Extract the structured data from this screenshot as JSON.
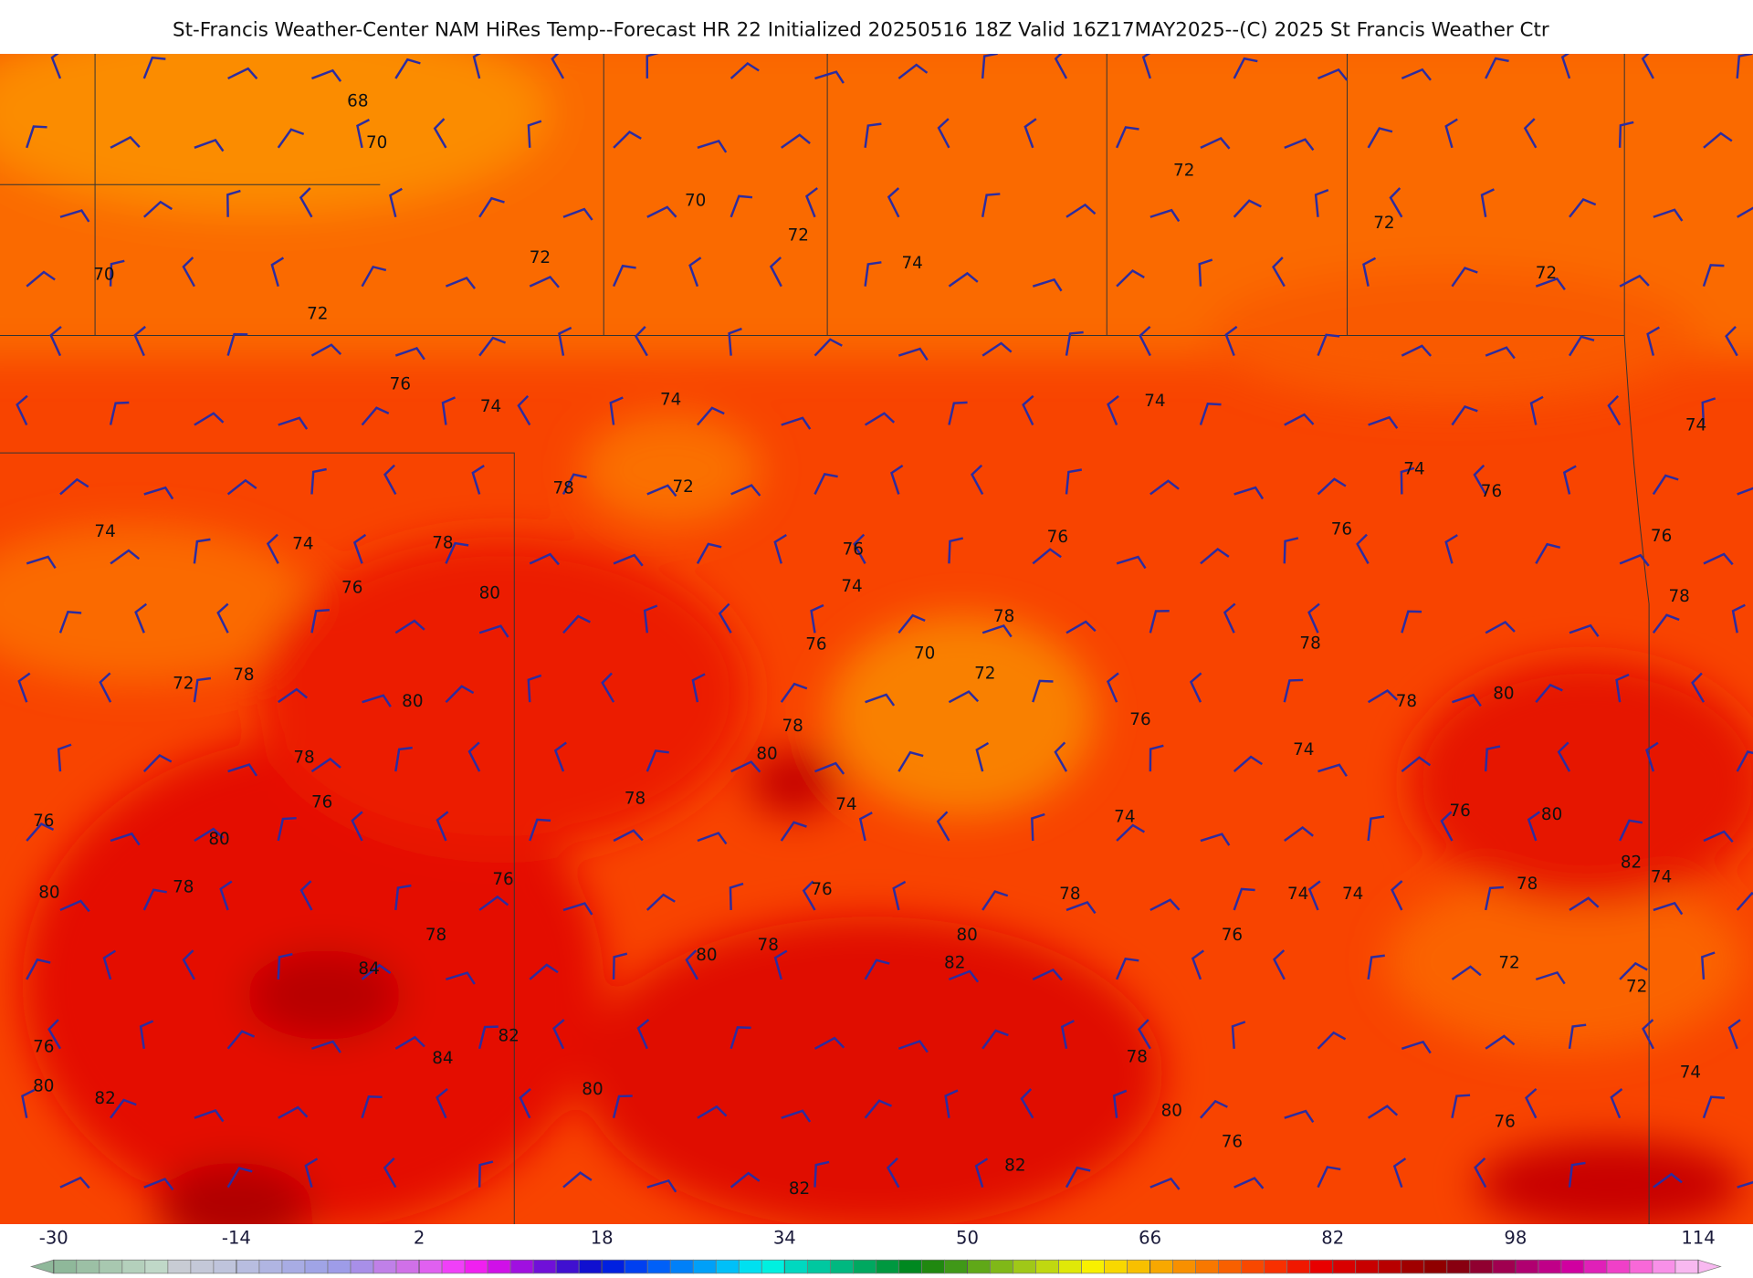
{
  "title": "St-Francis Weather-Center NAM HiRes Temp--Forecast HR 22 Initialized 20250516 18Z Valid 16Z17MAY2025--(C) 2025 St Francis Weather Ctr",
  "contour_labels": [
    68,
    70,
    70,
    70,
    72,
    72,
    74,
    72,
    72,
    72,
    72,
    76,
    74,
    74,
    74,
    74,
    78,
    72,
    74,
    76,
    74,
    74,
    78,
    76,
    76,
    76,
    76,
    76,
    80,
    74,
    78,
    78,
    76,
    70,
    72,
    78,
    72,
    78,
    80,
    78,
    80,
    78,
    76,
    80,
    74,
    78,
    76,
    78,
    74,
    74,
    76,
    80,
    76,
    80,
    82,
    74,
    76,
    78,
    80,
    76,
    78,
    74,
    74,
    78,
    78,
    80,
    76,
    80,
    78,
    82,
    72,
    72,
    84,
    82,
    84,
    78,
    76,
    80,
    82,
    80,
    74,
    80,
    76,
    76,
    82,
    82
  ],
  "colorbar": {
    "ticks": [
      -30,
      -14,
      2,
      18,
      34,
      50,
      66,
      82,
      98,
      114
    ],
    "colors": [
      "#8fb89a",
      "#9cc0a5",
      "#a8c8b0",
      "#b4d0bc",
      "#c0d8c8",
      "#c8ccd4",
      "#c4c8d8",
      "#bfc4dc",
      "#b8bde0",
      "#b0b5e2",
      "#a8ace4",
      "#a0a4e6",
      "#9e9ce8",
      "#a88fe8",
      "#c080e8",
      "#d070e8",
      "#e060f0",
      "#f040f8",
      "#f020f0",
      "#d010e8",
      "#a010e0",
      "#7010d8",
      "#4010d0",
      "#1010d0",
      "#0020e0",
      "#0040f0",
      "#0060f8",
      "#0080f8",
      "#00a0f8",
      "#00c0f8",
      "#00e0f0",
      "#00f0e0",
      "#00d8c0",
      "#00c8a0",
      "#00b880",
      "#00a860",
      "#009840",
      "#008820",
      "#208810",
      "#409818",
      "#60a818",
      "#80b818",
      "#a0c818",
      "#c0d810",
      "#e0e808",
      "#f8f000",
      "#f8d800",
      "#f8c000",
      "#f8a800",
      "#f89000",
      "#f87800",
      "#f86000",
      "#f84800",
      "#f83000",
      "#f01800",
      "#e80000",
      "#d80000",
      "#c80000",
      "#b80000",
      "#a00000",
      "#900000",
      "#880010",
      "#900030",
      "#a00050",
      "#b00070",
      "#c00088",
      "#d000a0",
      "#e020b8",
      "#f040c8",
      "#f868d8",
      "#f890e8",
      "#f8b8f0"
    ]
  }
}
